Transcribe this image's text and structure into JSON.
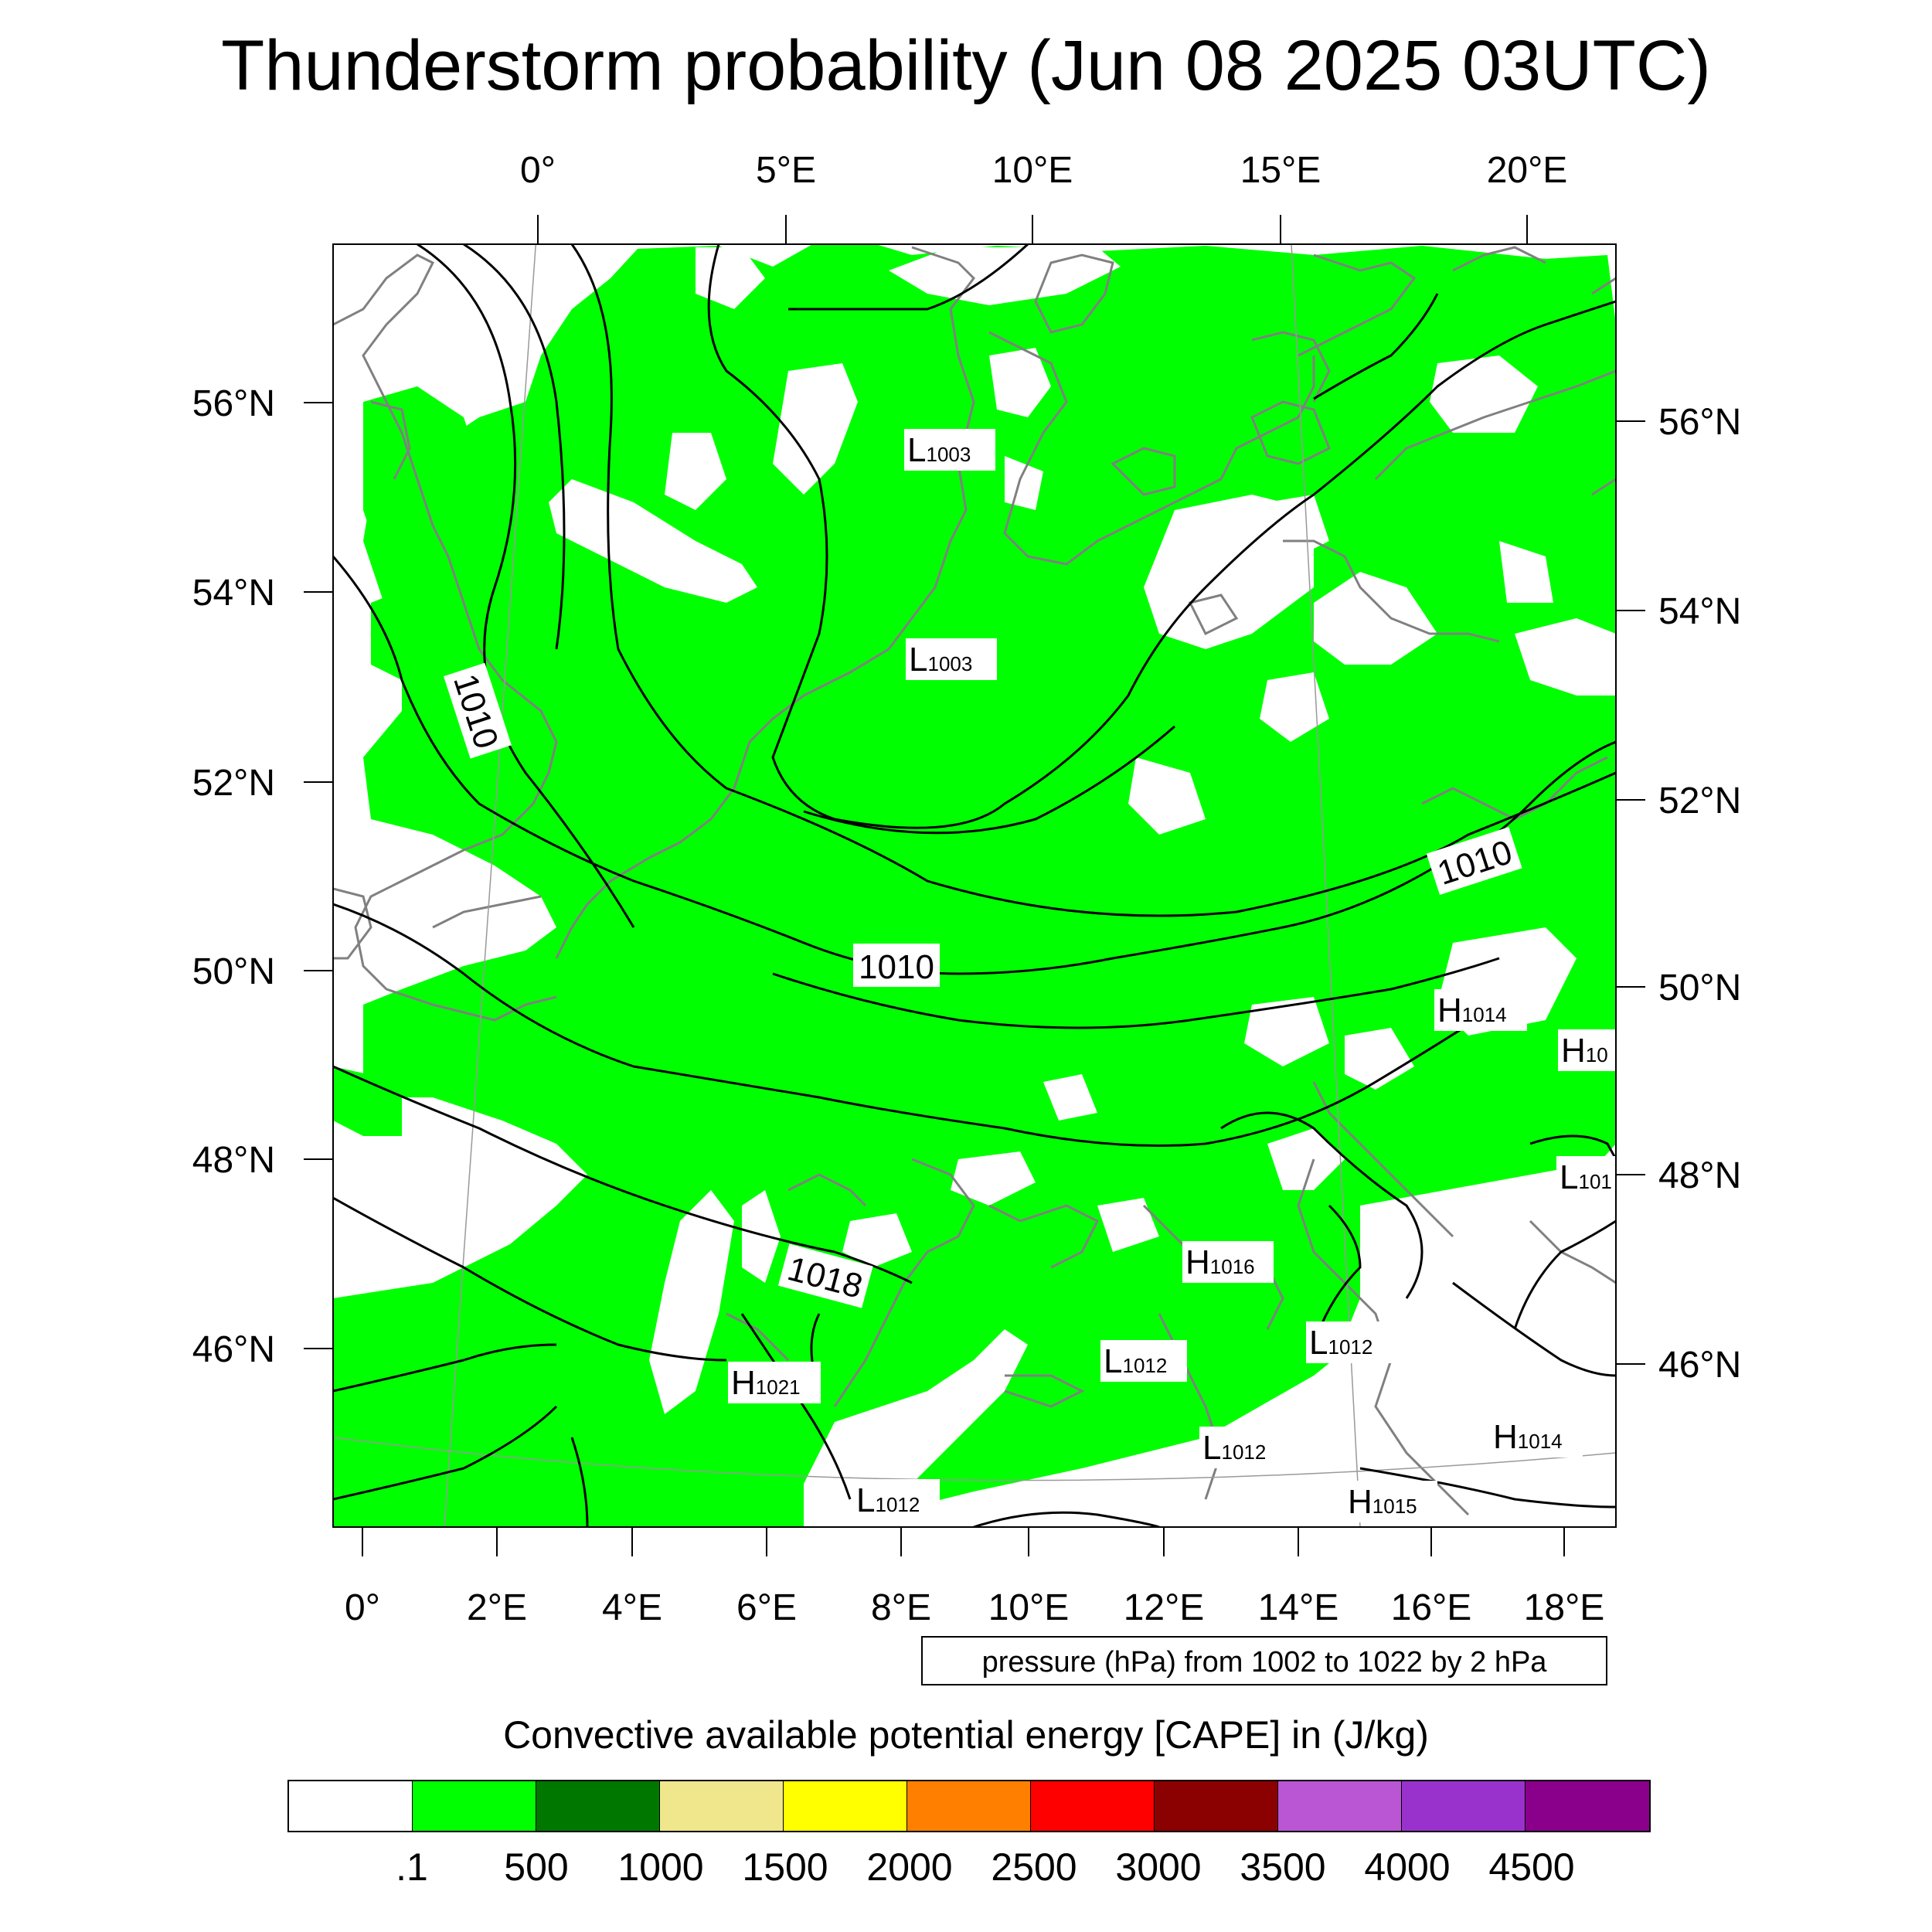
{
  "title": "Thunderstorm probability (Jun 08 2025 03UTC)",
  "map": {
    "top_lon_labels": [
      "0°",
      "5°E",
      "10°E",
      "15°E",
      "20°E"
    ],
    "bottom_lon_labels": [
      "0°",
      "2°E",
      "4°E",
      "6°E",
      "8°E",
      "10°E",
      "12°E",
      "14°E",
      "16°E",
      "18°E"
    ],
    "left_lat_labels": [
      "56°N",
      "54°N",
      "52°N",
      "50°N",
      "48°N",
      "46°N"
    ],
    "right_lat_labels": [
      "56°N",
      "54°N",
      "52°N",
      "50°N",
      "48°N",
      "46°N"
    ],
    "contour_labels": [
      "1010",
      "1010",
      "1010",
      "1018"
    ],
    "pressure_centers": [
      {
        "type": "L",
        "value": "1003"
      },
      {
        "type": "L",
        "value": "1003"
      },
      {
        "type": "H",
        "value": "1014"
      },
      {
        "type": "H",
        "value": "10"
      },
      {
        "type": "L",
        "value": "101"
      },
      {
        "type": "H",
        "value": "1016"
      },
      {
        "type": "L",
        "value": "1012"
      },
      {
        "type": "L",
        "value": "1012"
      },
      {
        "type": "H",
        "value": "1021"
      },
      {
        "type": "L",
        "value": "1012"
      },
      {
        "type": "L",
        "value": "1012"
      },
      {
        "type": "H",
        "value": "1014"
      },
      {
        "type": "H",
        "value": "1015"
      }
    ],
    "fill_color": "#00ff00",
    "coast_color": "#808080",
    "isobar_color": "#000000"
  },
  "pressure_info": "pressure (hPa) from 1002 to 1022 by 2 hPa",
  "colorbar": {
    "title": "Convective available potential energy [CAPE] in (J/kg)",
    "colors": [
      "#ffffff",
      "#00ff00",
      "#007800",
      "#f0e68c",
      "#ffff00",
      "#ff8000",
      "#ff0000",
      "#8b0000",
      "#ba55d3",
      "#9932cc",
      "#8b008b"
    ],
    "tick_labels": [
      ".1",
      "500",
      "1000",
      "1500",
      "2000",
      "2500",
      "3000",
      "3500",
      "4000",
      "4500"
    ]
  }
}
